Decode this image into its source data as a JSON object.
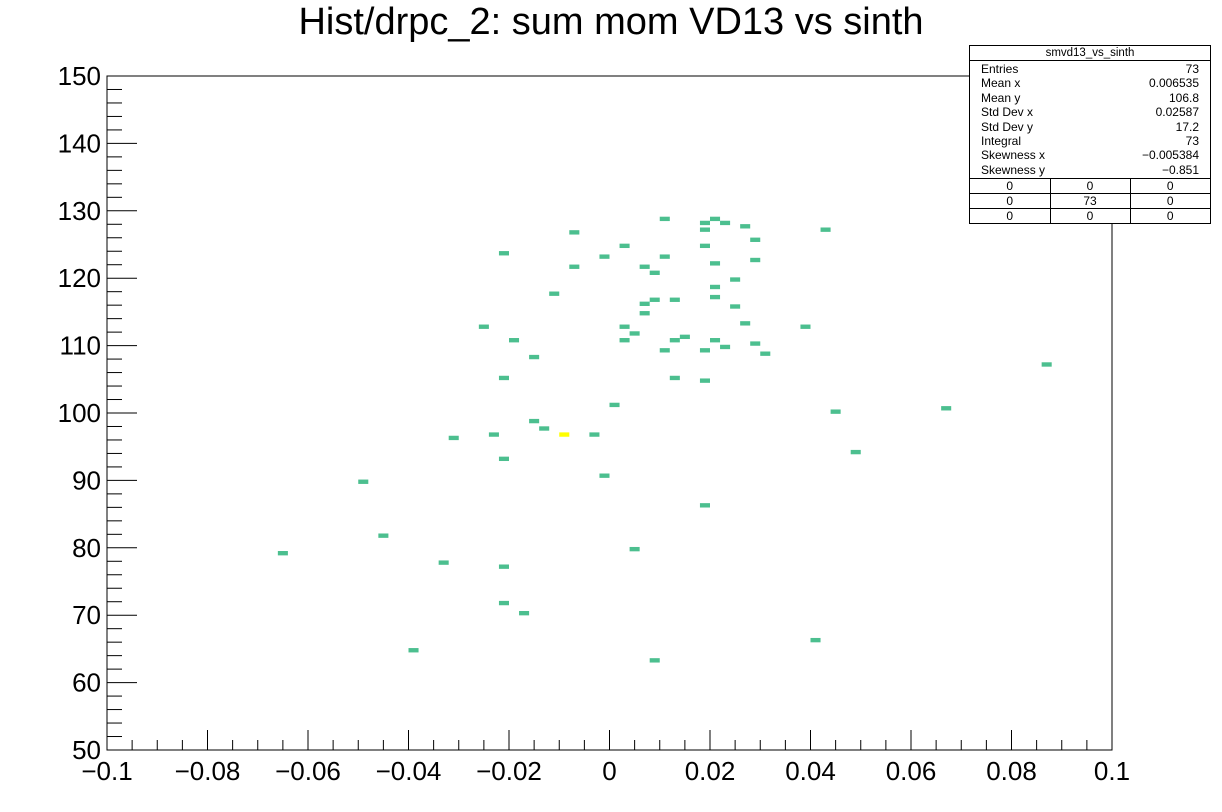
{
  "title": "Hist/drpc_2: sum mom VD13 vs sinth",
  "stats": {
    "name": "smvd13_vs_sinth",
    "rows": [
      {
        "label": "Entries",
        "value": "73"
      },
      {
        "label": "Mean x",
        "value": "0.006535"
      },
      {
        "label": "Mean y",
        "value": "106.8"
      },
      {
        "label": "Std Dev x",
        "value": "0.02587"
      },
      {
        "label": "Std Dev y",
        "value": "17.2"
      },
      {
        "label": "Integral",
        "value": "73"
      },
      {
        "label": "Skewness x",
        "value": "−0.005384"
      },
      {
        "label": "Skewness y",
        "value": "−0.851"
      }
    ],
    "overflow": [
      [
        "0",
        "0",
        "0"
      ],
      [
        "0",
        "73",
        "0"
      ],
      [
        "0",
        "0",
        "0"
      ]
    ]
  },
  "colors": {
    "cell": "#4cbf8f",
    "cell_highlight": "#ffff00",
    "axis": "#000000"
  },
  "chart_data": {
    "type": "heatmap",
    "title": "Hist/drpc_2: sum mom VD13 vs sinth",
    "xlabel": "",
    "ylabel": "",
    "xlim": [
      -0.1,
      0.1
    ],
    "ylim": [
      50,
      150
    ],
    "bin_width_x": 0.002,
    "bin_width_y": 0.5,
    "x_ticks": [
      -0.1,
      -0.08,
      -0.06,
      -0.04,
      -0.02,
      0,
      0.02,
      0.04,
      0.06,
      0.08,
      0.1
    ],
    "x_tick_labels": [
      "−0.1",
      "−0.08",
      "−0.06",
      "−0.04",
      "−0.02",
      "0",
      "0.02",
      "0.04",
      "0.06",
      "0.08",
      "0.1"
    ],
    "y_ticks": [
      50,
      60,
      70,
      80,
      90,
      100,
      110,
      120,
      130,
      140,
      150
    ],
    "y_tick_labels": [
      "50",
      "60",
      "70",
      "80",
      "90",
      "100",
      "110",
      "120",
      "130",
      "140",
      "150"
    ],
    "grid": false,
    "points": [
      {
        "x": -0.065,
        "y": 79.2
      },
      {
        "x": -0.049,
        "y": 89.8
      },
      {
        "x": -0.045,
        "y": 81.8
      },
      {
        "x": -0.039,
        "y": 64.8
      },
      {
        "x": -0.033,
        "y": 77.8
      },
      {
        "x": -0.031,
        "y": 96.3
      },
      {
        "x": -0.025,
        "y": 112.8
      },
      {
        "x": -0.023,
        "y": 96.8
      },
      {
        "x": -0.021,
        "y": 123.7
      },
      {
        "x": -0.021,
        "y": 105.2
      },
      {
        "x": -0.021,
        "y": 93.2
      },
      {
        "x": -0.021,
        "y": 77.2
      },
      {
        "x": -0.021,
        "y": 71.8
      },
      {
        "x": -0.019,
        "y": 110.8
      },
      {
        "x": -0.017,
        "y": 70.3
      },
      {
        "x": -0.015,
        "y": 108.3
      },
      {
        "x": -0.015,
        "y": 98.8
      },
      {
        "x": -0.013,
        "y": 97.7
      },
      {
        "x": -0.011,
        "y": 117.7
      },
      {
        "x": -0.009,
        "y": 96.8,
        "highlight": true
      },
      {
        "x": -0.007,
        "y": 126.8
      },
      {
        "x": -0.007,
        "y": 121.7
      },
      {
        "x": -0.003,
        "y": 96.8
      },
      {
        "x": -0.001,
        "y": 123.2
      },
      {
        "x": -0.001,
        "y": 90.7
      },
      {
        "x": 0.001,
        "y": 101.2
      },
      {
        "x": 0.003,
        "y": 124.8
      },
      {
        "x": 0.003,
        "y": 112.8
      },
      {
        "x": 0.003,
        "y": 110.8
      },
      {
        "x": 0.005,
        "y": 111.8
      },
      {
        "x": 0.005,
        "y": 79.8
      },
      {
        "x": 0.007,
        "y": 121.7
      },
      {
        "x": 0.007,
        "y": 116.2
      },
      {
        "x": 0.007,
        "y": 114.8
      },
      {
        "x": 0.009,
        "y": 120.8
      },
      {
        "x": 0.009,
        "y": 116.8
      },
      {
        "x": 0.009,
        "y": 63.3
      },
      {
        "x": 0.011,
        "y": 128.8
      },
      {
        "x": 0.011,
        "y": 123.2
      },
      {
        "x": 0.011,
        "y": 109.3
      },
      {
        "x": 0.013,
        "y": 116.8
      },
      {
        "x": 0.013,
        "y": 110.8
      },
      {
        "x": 0.013,
        "y": 105.2
      },
      {
        "x": 0.015,
        "y": 111.3
      },
      {
        "x": 0.019,
        "y": 128.2
      },
      {
        "x": 0.019,
        "y": 127.2
      },
      {
        "x": 0.019,
        "y": 124.8
      },
      {
        "x": 0.019,
        "y": 109.3
      },
      {
        "x": 0.019,
        "y": 104.8
      },
      {
        "x": 0.019,
        "y": 86.3
      },
      {
        "x": 0.021,
        "y": 128.8
      },
      {
        "x": 0.021,
        "y": 122.2
      },
      {
        "x": 0.021,
        "y": 118.7
      },
      {
        "x": 0.021,
        "y": 117.2
      },
      {
        "x": 0.021,
        "y": 110.8
      },
      {
        "x": 0.023,
        "y": 128.2
      },
      {
        "x": 0.023,
        "y": 109.8
      },
      {
        "x": 0.025,
        "y": 119.8
      },
      {
        "x": 0.025,
        "y": 115.8
      },
      {
        "x": 0.027,
        "y": 127.7
      },
      {
        "x": 0.027,
        "y": 113.3
      },
      {
        "x": 0.029,
        "y": 125.7
      },
      {
        "x": 0.029,
        "y": 122.7
      },
      {
        "x": 0.029,
        "y": 110.3
      },
      {
        "x": 0.031,
        "y": 108.8
      },
      {
        "x": 0.039,
        "y": 112.8
      },
      {
        "x": 0.041,
        "y": 66.3
      },
      {
        "x": 0.043,
        "y": 127.2
      },
      {
        "x": 0.045,
        "y": 100.2
      },
      {
        "x": 0.049,
        "y": 94.2
      },
      {
        "x": 0.067,
        "y": 100.7
      },
      {
        "x": 0.087,
        "y": 107.2
      }
    ]
  }
}
